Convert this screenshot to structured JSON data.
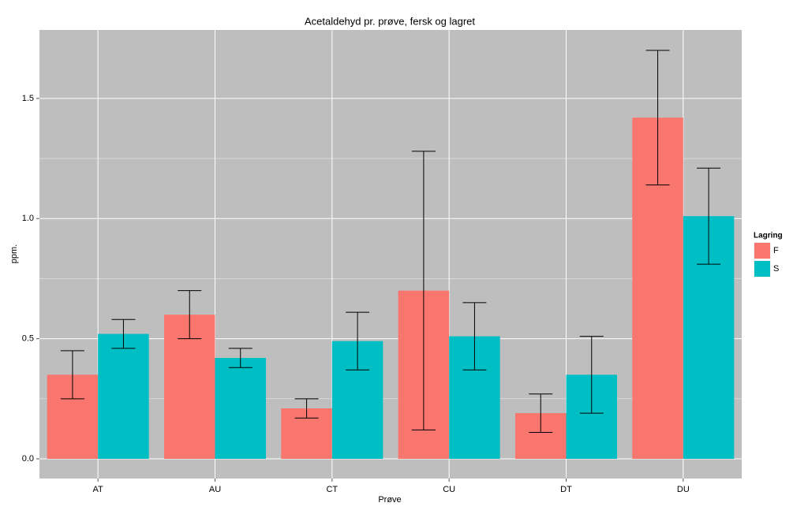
{
  "chart_data": {
    "type": "bar",
    "title": "Acetaldehyd pr. prøve, fersk og lagret",
    "x_label": "Prøve",
    "y_label": "ppm.",
    "categories": [
      "AT",
      "AU",
      "CT",
      "CU",
      "DT",
      "DU"
    ],
    "series": [
      {
        "name": "F",
        "color": "#F8766D",
        "values": [
          0.35,
          0.6,
          0.21,
          0.7,
          0.19,
          1.42
        ],
        "errors": [
          0.1,
          0.1,
          0.04,
          0.58,
          0.08,
          0.28
        ]
      },
      {
        "name": "S",
        "color": "#00BFC4",
        "values": [
          0.52,
          0.42,
          0.49,
          0.51,
          0.35,
          1.01
        ],
        "errors": [
          0.06,
          0.04,
          0.12,
          0.14,
          0.16,
          0.2
        ]
      }
    ],
    "legend_title": "Lagring",
    "legend_position": "right",
    "ylim": [
      -0.082,
      1.785
    ],
    "yticks": [
      {
        "value": 0,
        "label": "0.0"
      },
      0.5,
      {
        "value": 1,
        "label": "1.0"
      },
      1.5
    ],
    "grid": true,
    "background": "#BEBEBE"
  }
}
